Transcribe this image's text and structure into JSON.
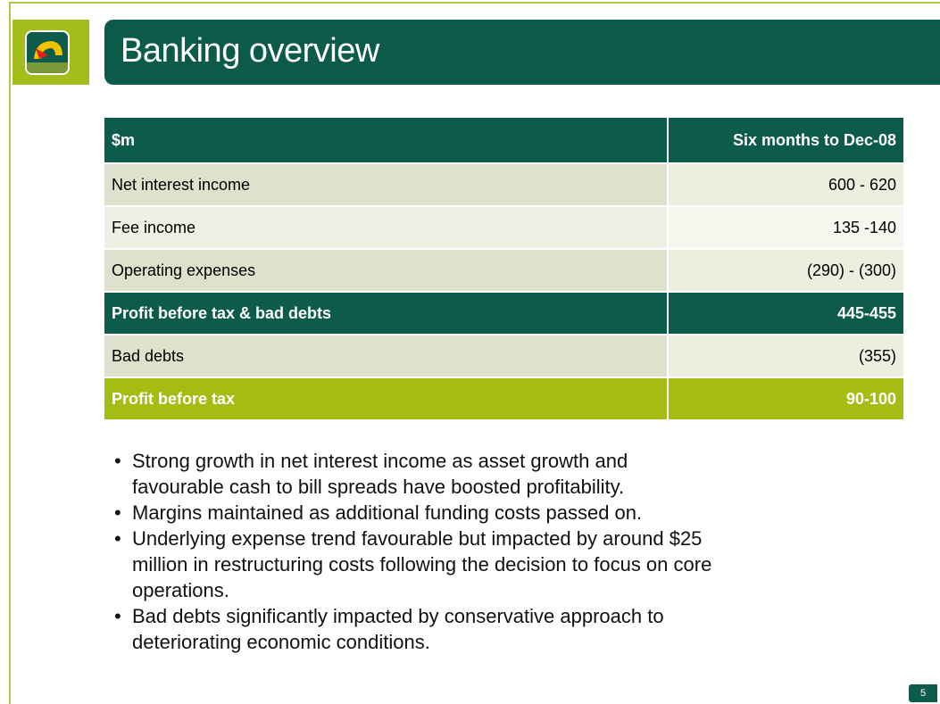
{
  "header": {
    "title": "Banking overview"
  },
  "table": {
    "header": [
      "$m",
      "Six months to Dec-08"
    ],
    "rows": [
      [
        "Net interest income",
        "600 - 620"
      ],
      [
        "Fee income",
        "135 -140"
      ],
      [
        "Operating expenses",
        "(290) - (300)"
      ],
      [
        "Profit before tax & bad debts",
        "445-455"
      ],
      [
        "Bad debts",
        "(355)"
      ],
      [
        "Profit before tax",
        "90-100"
      ]
    ]
  },
  "bullets": [
    "Strong growth in net interest income as asset growth and favourable cash to bill spreads have boosted profitability.",
    "Margins maintained as additional funding costs passed on.",
    "Underlying expense trend favourable but impacted by around $25 million in restructuring costs following the decision to focus on core operations.",
    "Bad debts significantly impacted by conservative approach to deteriorating economic conditions."
  ],
  "page_number": "5"
}
